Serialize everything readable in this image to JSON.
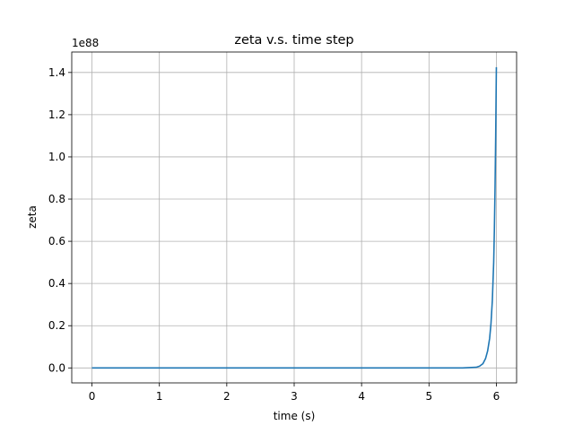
{
  "chart_data": {
    "type": "line",
    "title": "zeta v.s. time step",
    "xlabel": "time (s)",
    "ylabel": "zeta",
    "y_offset_label": "1e88",
    "xlim": [
      -0.3,
      6.3
    ],
    "ylim": [
      -0.071,
      1.497
    ],
    "x_ticks": [
      0,
      1,
      2,
      3,
      4,
      5,
      6
    ],
    "x_tick_labels": [
      "0",
      "1",
      "2",
      "3",
      "4",
      "5",
      "6"
    ],
    "y_ticks": [
      0.0,
      0.2,
      0.4,
      0.6,
      0.8,
      1.0,
      1.2,
      1.4
    ],
    "y_tick_labels": [
      "0.0",
      "0.2",
      "0.4",
      "0.6",
      "0.8",
      "1.0",
      "1.2",
      "1.4"
    ],
    "grid": true,
    "legend": "none",
    "colors": {
      "line": "#1f77b4",
      "grid": "#b0b0b0"
    },
    "series": [
      {
        "x": [
          0,
          1,
          2,
          3,
          4,
          5,
          5.5,
          5.7,
          5.75,
          5.8,
          5.84,
          5.87,
          5.9,
          5.92,
          5.94,
          5.96,
          5.97,
          5.98,
          5.99,
          6.0
        ],
        "values": [
          0,
          0,
          0,
          0,
          0,
          0,
          0,
          0.003,
          0.008,
          0.02,
          0.045,
          0.08,
          0.14,
          0.21,
          0.32,
          0.5,
          0.65,
          0.85,
          1.1,
          1.425
        ]
      }
    ]
  }
}
